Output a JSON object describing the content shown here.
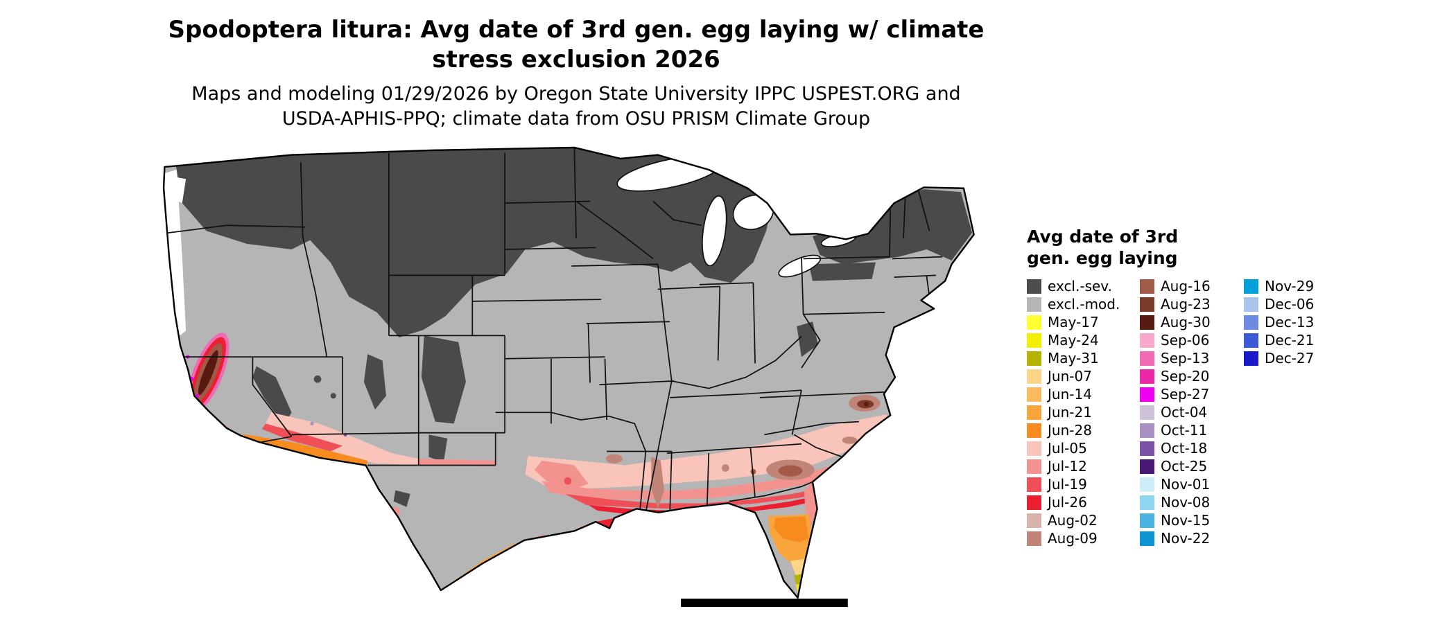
{
  "title": {
    "line1": "Spodoptera litura: Avg date of 3rd gen. egg laying w/ climate",
    "line2": "stress exclusion 2026"
  },
  "subtitle": {
    "line1": "Maps and modeling 01/29/2026 by Oregon State University IPPC USPEST.ORG and",
    "line2": "USDA-APHIS-PPQ; climate data from OSU PRISM Climate Group"
  },
  "legend": {
    "title_line1": "Avg date of 3rd",
    "title_line2": "gen. egg laying",
    "columns": [
      [
        {
          "label": "excl.-sev.",
          "color": "#4d4d4d"
        },
        {
          "label": "excl.-mod.",
          "color": "#b5b5b5"
        },
        {
          "label": "May-17",
          "color": "#ffff33"
        },
        {
          "label": "May-24",
          "color": "#f2ef00"
        },
        {
          "label": "May-31",
          "color": "#b3b300"
        },
        {
          "label": "Jun-07",
          "color": "#fcd588"
        },
        {
          "label": "Jun-14",
          "color": "#fdb95c"
        },
        {
          "label": "Jun-21",
          "color": "#faa43c"
        },
        {
          "label": "Jun-28",
          "color": "#f78b1e"
        },
        {
          "label": "Jul-05",
          "color": "#f9c4ba"
        },
        {
          "label": "Jul-12",
          "color": "#f29390"
        },
        {
          "label": "Jul-19",
          "color": "#ef5058"
        },
        {
          "label": "Jul-26",
          "color": "#ec1f30"
        },
        {
          "label": "Aug-02",
          "color": "#d9b3ab"
        },
        {
          "label": "Aug-09",
          "color": "#c08478"
        }
      ],
      [
        {
          "label": "Aug-16",
          "color": "#a05a47"
        },
        {
          "label": "Aug-23",
          "color": "#7c3b2a"
        },
        {
          "label": "Aug-30",
          "color": "#561a10"
        },
        {
          "label": "Sep-06",
          "color": "#f7a8cc"
        },
        {
          "label": "Sep-13",
          "color": "#f06ab4"
        },
        {
          "label": "Sep-20",
          "color": "#eb28a8"
        },
        {
          "label": "Sep-27",
          "color": "#f000f0"
        },
        {
          "label": "Oct-04",
          "color": "#cdc2d8"
        },
        {
          "label": "Oct-11",
          "color": "#a98fc2"
        },
        {
          "label": "Oct-18",
          "color": "#7e51a8"
        },
        {
          "label": "Oct-25",
          "color": "#491978"
        },
        {
          "label": "Nov-01",
          "color": "#cdeef8"
        },
        {
          "label": "Nov-08",
          "color": "#8fd5ef"
        },
        {
          "label": "Nov-15",
          "color": "#4ab3e0"
        },
        {
          "label": "Nov-22",
          "color": "#0e93d2"
        }
      ],
      [
        {
          "label": "Nov-29",
          "color": "#00a0d8"
        },
        {
          "label": "Dec-06",
          "color": "#aac4ec"
        },
        {
          "label": "Dec-13",
          "color": "#6d8be2"
        },
        {
          "label": "Dec-21",
          "color": "#3b5bd6"
        },
        {
          "label": "Dec-27",
          "color": "#1a1aca"
        }
      ]
    ]
  }
}
